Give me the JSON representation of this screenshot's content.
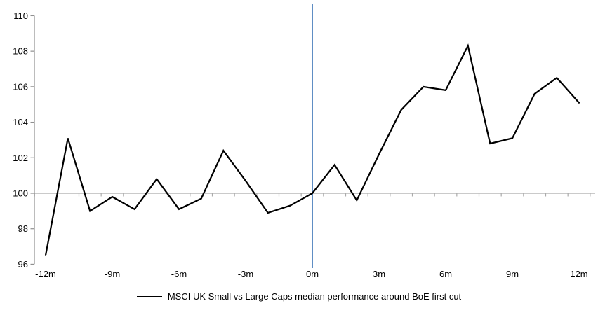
{
  "legend": {
    "label": "MSCI UK Small vs Large Caps median performance around BoE first cut"
  },
  "colors": {
    "series_line": "#000000",
    "event_line": "#4E81BD",
    "y_axis": "#8F8F8F",
    "baseline": "#ABABAB",
    "label_text": "#000000",
    "background": "#FFFFFF"
  },
  "chart_data": {
    "type": "line",
    "title": "",
    "legend_entries": [
      "MSCI UK Small vs Large Caps median performance around BoE first cut"
    ],
    "legend_position": "bottom",
    "x": [
      -12,
      -11,
      -10,
      -9,
      -8,
      -7,
      -6,
      -5,
      -4,
      -3,
      -2,
      -1,
      0,
      1,
      2,
      3,
      4,
      5,
      6,
      7,
      8,
      9,
      10,
      11,
      12
    ],
    "series": [
      {
        "name": "MSCI UK Small vs Large Caps median performance around BoE first cut",
        "values": [
          96.5,
          103.1,
          99.0,
          99.8,
          99.1,
          100.8,
          99.1,
          99.7,
          102.4,
          100.7,
          98.9,
          99.3,
          100.0,
          101.6,
          99.6,
          102.2,
          104.7,
          106.0,
          105.8,
          108.3,
          102.8,
          103.1,
          105.6,
          106.5,
          105.1
        ]
      }
    ],
    "x_tick_positions": [
      -12,
      -9,
      -6,
      -3,
      0,
      3,
      6,
      9,
      12
    ],
    "x_tick_labels": [
      "-12m",
      "-9m",
      "-6m",
      "-3m",
      "0m",
      "3m",
      "6m",
      "9m",
      "12m"
    ],
    "y_ticks": [
      96,
      98,
      100,
      102,
      104,
      106,
      108,
      110
    ],
    "ylim": [
      96,
      110
    ],
    "xlim": [
      -12.5,
      12.5
    ],
    "baseline_value": 100,
    "event_line_x": 0,
    "grid": "off"
  }
}
